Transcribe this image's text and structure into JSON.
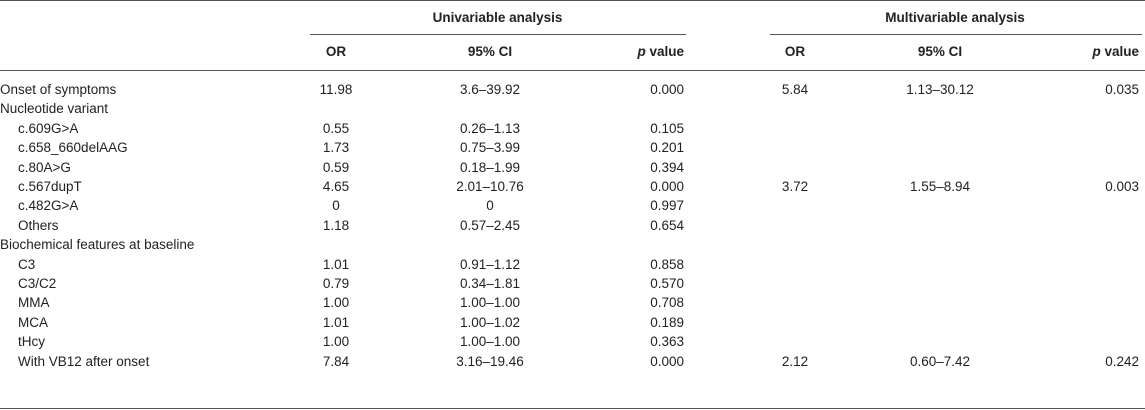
{
  "header": {
    "univariable_title": "Univariable analysis",
    "multivariable_title": "Multivariable analysis",
    "columns": {
      "or": "OR",
      "ci": "95% CI",
      "p_italic": "p",
      "p_rest": " value"
    }
  },
  "rows": [
    {
      "label": "Onset of symptoms",
      "indent": false,
      "u_or": "11.98",
      "u_ci": "3.6–39.92",
      "u_p": "0.000",
      "m_or": "5.84",
      "m_ci": "1.13–30.12",
      "m_p": "0.035"
    },
    {
      "label": "Nucleotide variant",
      "indent": false,
      "u_or": "",
      "u_ci": "",
      "u_p": "",
      "m_or": "",
      "m_ci": "",
      "m_p": ""
    },
    {
      "label": "c.609G>A",
      "indent": true,
      "u_or": "0.55",
      "u_ci": "0.26–1.13",
      "u_p": "0.105",
      "m_or": "",
      "m_ci": "",
      "m_p": ""
    },
    {
      "label": "c.658_660delAAG",
      "indent": true,
      "u_or": "1.73",
      "u_ci": "0.75–3.99",
      "u_p": "0.201",
      "m_or": "",
      "m_ci": "",
      "m_p": ""
    },
    {
      "label": "c.80A>G",
      "indent": true,
      "u_or": "0.59",
      "u_ci": "0.18–1.99",
      "u_p": "0.394",
      "m_or": "",
      "m_ci": "",
      "m_p": ""
    },
    {
      "label": "c.567dupT",
      "indent": true,
      "u_or": "4.65",
      "u_ci": "2.01–10.76",
      "u_p": "0.000",
      "m_or": "3.72",
      "m_ci": "1.55–8.94",
      "m_p": "0.003"
    },
    {
      "label": "c.482G>A",
      "indent": true,
      "u_or": "0",
      "u_ci": "0",
      "u_p": "0.997",
      "m_or": "",
      "m_ci": "",
      "m_p": ""
    },
    {
      "label": "Others",
      "indent": true,
      "u_or": "1.18",
      "u_ci": "0.57–2.45",
      "u_p": "0.654",
      "m_or": "",
      "m_ci": "",
      "m_p": ""
    },
    {
      "label": "Biochemical features at baseline",
      "indent": false,
      "u_or": "",
      "u_ci": "",
      "u_p": "",
      "m_or": "",
      "m_ci": "",
      "m_p": ""
    },
    {
      "label": "C3",
      "indent": true,
      "u_or": "1.01",
      "u_ci": "0.91–1.12",
      "u_p": "0.858",
      "m_or": "",
      "m_ci": "",
      "m_p": ""
    },
    {
      "label": "C3/C2",
      "indent": true,
      "u_or": "0.79",
      "u_ci": "0.34–1.81",
      "u_p": "0.570",
      "m_or": "",
      "m_ci": "",
      "m_p": ""
    },
    {
      "label": "MMA",
      "indent": true,
      "u_or": "1.00",
      "u_ci": "1.00–1.00",
      "u_p": "0.708",
      "m_or": "",
      "m_ci": "",
      "m_p": ""
    },
    {
      "label": "MCA",
      "indent": true,
      "u_or": "1.01",
      "u_ci": "1.00–1.02",
      "u_p": "0.189",
      "m_or": "",
      "m_ci": "",
      "m_p": ""
    },
    {
      "label": "tHcy",
      "indent": true,
      "u_or": "1.00",
      "u_ci": "1.00–1.00",
      "u_p": "0.363",
      "m_or": "",
      "m_ci": "",
      "m_p": ""
    },
    {
      "label": "With VB12 after onset",
      "indent": true,
      "u_or": "7.84",
      "u_ci": "3.16–19.46",
      "u_p": "0.000",
      "m_or": "2.12",
      "m_ci": "0.60–7.42",
      "m_p": "0.242"
    }
  ]
}
